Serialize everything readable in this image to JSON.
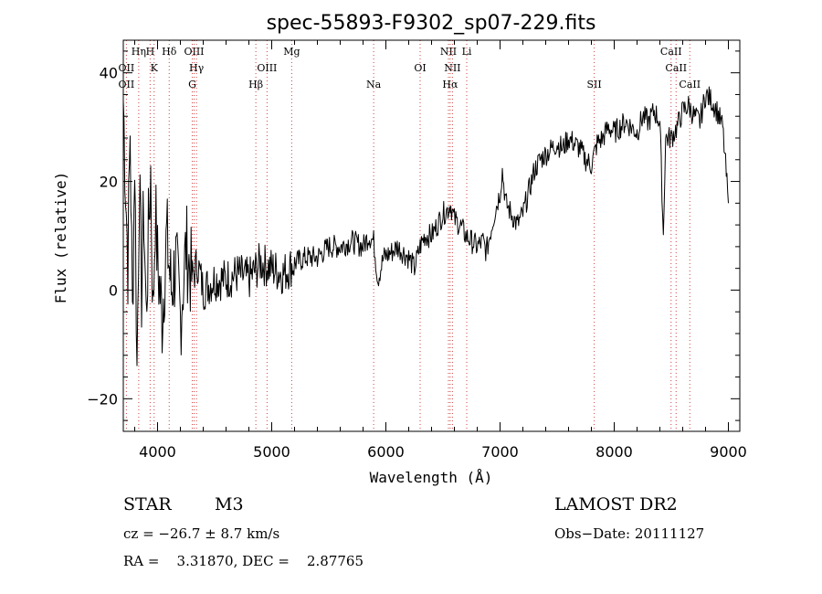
{
  "chart_data": {
    "type": "line",
    "title": "spec-55893-F9302_sp07-229.fits",
    "xlabel": "Wavelength (Å)",
    "ylabel": "Flux (relative)",
    "xlim": [
      3700,
      9100
    ],
    "ylim": [
      -26,
      46
    ],
    "xticks": [
      4000,
      5000,
      6000,
      7000,
      8000,
      9000
    ],
    "yticks": [
      -20,
      0,
      20,
      40
    ],
    "grid": false,
    "line_color": "#000000",
    "marker_color": "#d04040",
    "series": [
      {
        "x": [
          3700,
          3720,
          3740,
          3760,
          3780,
          3800,
          3820,
          3840,
          3860,
          3880,
          3900,
          3920,
          3940,
          3960,
          3980,
          4000,
          4040,
          4080,
          4120,
          4160,
          4200,
          4250,
          4300,
          4350,
          4400,
          4500,
          4600,
          4700,
          4800,
          4900,
          5000,
          5100,
          5200,
          5300,
          5400,
          5500,
          5600,
          5700,
          5800,
          5850,
          5893,
          5930,
          5980,
          6050,
          6100,
          6150,
          6200,
          6250,
          6300,
          6340,
          6400,
          6450,
          6500,
          6550,
          6563,
          6600,
          6650,
          6700,
          6750,
          6800,
          6850,
          6880,
          6900,
          6950,
          7000,
          7020,
          7050,
          7100,
          7150,
          7200,
          7250,
          7300,
          7350,
          7400,
          7450,
          7500,
          7550,
          7600,
          7650,
          7700,
          7750,
          7800,
          7850,
          7900,
          7950,
          8000,
          8050,
          8100,
          8150,
          8200,
          8250,
          8300,
          8350,
          8400,
          8430,
          8450,
          8500,
          8550,
          8600,
          8650,
          8700,
          8750,
          8800,
          8850,
          8900,
          8950,
          9000
        ],
        "values": [
          35,
          20,
          5,
          30,
          -5,
          25,
          -15,
          20,
          0,
          15,
          -5,
          10,
          22,
          -5,
          15,
          5,
          -5,
          10,
          0,
          5,
          -5,
          8,
          2,
          5,
          0,
          2,
          2,
          3,
          2,
          5,
          4,
          3,
          5,
          6,
          6,
          8,
          8,
          9,
          8,
          10,
          9,
          2,
          6,
          7,
          8,
          7,
          6,
          4,
          8,
          10,
          10,
          12,
          14,
          15,
          16,
          13,
          12,
          10,
          9,
          8,
          9,
          7,
          9,
          14,
          18,
          22,
          16,
          14,
          12,
          14,
          18,
          22,
          24,
          25,
          26,
          27,
          26,
          28,
          27,
          26,
          24,
          23,
          27,
          28,
          30,
          29,
          30,
          31,
          30,
          29,
          32,
          31,
          33,
          31,
          10,
          28,
          28,
          30,
          33,
          34,
          32,
          31,
          36,
          35,
          33,
          30,
          16
        ]
      }
    ],
    "spectral_lines": [
      {
        "label": "OII",
        "x": 3727
      },
      {
        "label": "OII",
        "x": 3727
      },
      {
        "label": "Hη",
        "x": 3835
      },
      {
        "label": "H",
        "x": 3935
      },
      {
        "label": "K",
        "x": 3970
      },
      {
        "label": "Hδ",
        "x": 4102
      },
      {
        "label": "OIII",
        "x": 4320
      },
      {
        "label": "Hγ",
        "x": 4341
      },
      {
        "label": "G",
        "x": 4304
      },
      {
        "label": "Hβ",
        "x": 4861
      },
      {
        "label": "OIII",
        "x": 4959
      },
      {
        "label": "Mg",
        "x": 5175
      },
      {
        "label": "Na",
        "x": 5893
      },
      {
        "label": "OI",
        "x": 6300
      },
      {
        "label": "NII",
        "x": 6548
      },
      {
        "label": "NII",
        "x": 6583
      },
      {
        "label": "Li",
        "x": 6708
      },
      {
        "label": "Hα",
        "x": 6563
      },
      {
        "label": "SII",
        "x": 7825
      },
      {
        "label": "CaII",
        "x": 8498
      },
      {
        "label": "CaII",
        "x": 8542
      },
      {
        "label": "CaII",
        "x": 8662
      }
    ]
  },
  "info": {
    "class": "STAR",
    "subclass": "M3",
    "survey": "LAMOST DR2",
    "cz": "cz = −26.7 ± 8.7 km/s",
    "obs_date": "Obs−Date: 20111127",
    "radec": "RA =    3.31870, DEC =    2.87765"
  }
}
